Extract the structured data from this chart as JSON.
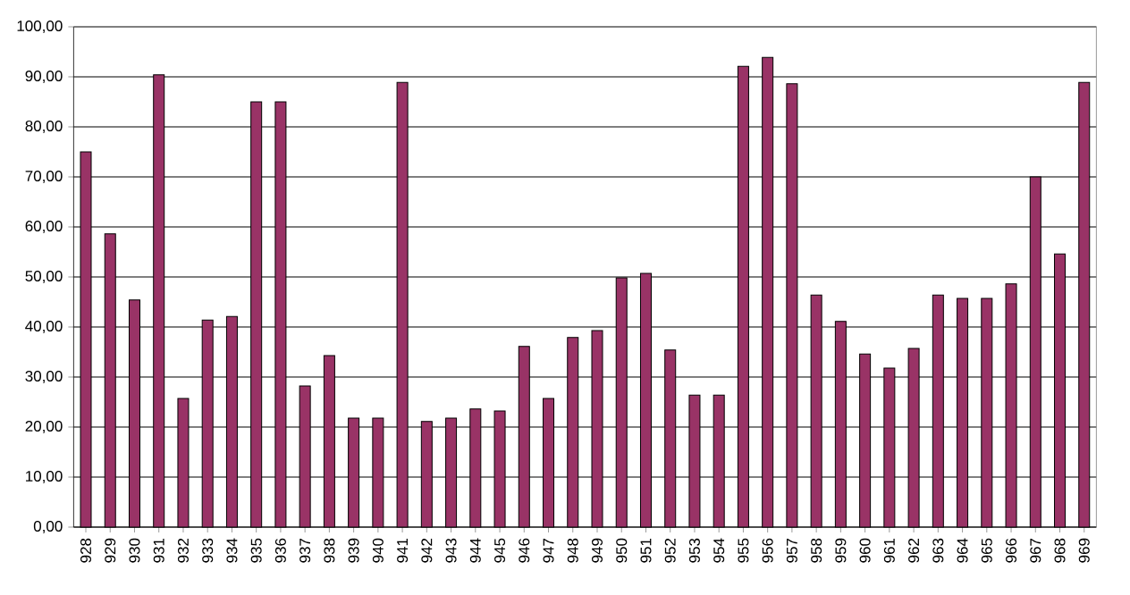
{
  "chart_data": {
    "type": "bar",
    "categories": [
      "928",
      "929",
      "930",
      "931",
      "932",
      "933",
      "934",
      "935",
      "936",
      "937",
      "938",
      "939",
      "940",
      "941",
      "942",
      "943",
      "944",
      "945",
      "946",
      "947",
      "948",
      "949",
      "950",
      "951",
      "952",
      "953",
      "954",
      "955",
      "956",
      "957",
      "958",
      "959",
      "960",
      "961",
      "962",
      "963",
      "964",
      "965",
      "966",
      "967",
      "968",
      "969"
    ],
    "values": [
      75.0,
      58.6,
      45.4,
      90.4,
      25.7,
      41.4,
      42.1,
      85.0,
      85.0,
      28.2,
      34.3,
      21.8,
      21.8,
      88.9,
      21.1,
      21.8,
      23.6,
      23.2,
      36.1,
      25.7,
      37.9,
      39.3,
      49.8,
      50.7,
      35.4,
      26.4,
      26.4,
      92.1,
      93.9,
      88.6,
      46.4,
      41.1,
      34.6,
      31.8,
      35.7,
      46.4,
      45.7,
      45.7,
      48.6,
      70.0,
      54.6,
      88.9
    ],
    "color": "#993366",
    "ylim": [
      0,
      100
    ],
    "yticks": [
      {
        "value": 0,
        "label": "0,00"
      },
      {
        "value": 10,
        "label": "10,00"
      },
      {
        "value": 20,
        "label": "20,00"
      },
      {
        "value": 30,
        "label": "30,00"
      },
      {
        "value": 40,
        "label": "40,00"
      },
      {
        "value": 50,
        "label": "50,00"
      },
      {
        "value": 60,
        "label": "60,00"
      },
      {
        "value": 70,
        "label": "70,00"
      },
      {
        "value": 80,
        "label": "80,00"
      },
      {
        "value": 90,
        "label": "90,00"
      },
      {
        "value": 100,
        "label": "100,00"
      }
    ],
    "grid": "y"
  }
}
